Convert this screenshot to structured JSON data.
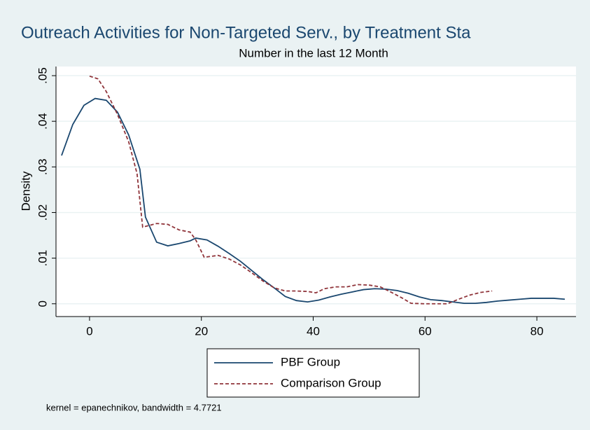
{
  "chart_data": {
    "type": "line",
    "title": "Outreach Activities for Non-Targeted Serv., by Treatment Sta",
    "subtitle": "Number in the last 12 Month",
    "y_label": "Density",
    "note": "kernel = epanechnikov, bandwidth = 4.7721",
    "xlim": [
      -6,
      87
    ],
    "ylim": [
      -0.0028,
      0.052
    ],
    "xticks": [
      0,
      20,
      40,
      60,
      80
    ],
    "yticks": [
      0,
      {
        "value": 0.01,
        "label": ".01"
      },
      {
        "value": 0.02,
        "label": ".02"
      },
      {
        "value": 0.03,
        "label": ".03"
      },
      {
        "value": 0.04,
        "label": ".04"
      },
      {
        "value": 0.05,
        "label": ".05"
      }
    ],
    "grid": true,
    "series": [
      {
        "name": "PBF Group",
        "color": "#1a476f",
        "style": "solid",
        "x": [
          -5,
          -3,
          -1,
          1,
          3,
          5,
          7,
          9,
          10,
          12,
          14,
          16,
          18,
          19,
          21,
          23,
          25,
          27,
          29,
          31,
          33,
          35,
          37,
          39,
          41,
          43,
          45,
          47,
          49,
          51,
          53,
          55,
          57,
          59,
          61,
          63,
          65,
          67,
          69,
          71,
          73,
          75,
          77,
          79,
          81,
          83,
          85
        ],
        "values": [
          0.0325,
          0.0393,
          0.0435,
          0.045,
          0.0446,
          0.042,
          0.037,
          0.0295,
          0.019,
          0.0135,
          0.0127,
          0.0132,
          0.0138,
          0.0144,
          0.014,
          0.0126,
          0.011,
          0.0093,
          0.0073,
          0.0053,
          0.0035,
          0.0016,
          0.0007,
          0.0004,
          0.0008,
          0.0015,
          0.0021,
          0.0026,
          0.0031,
          0.0033,
          0.0032,
          0.0029,
          0.0023,
          0.0015,
          0.0009,
          0.0007,
          0.0004,
          0.0001,
          0.0001,
          0.0003,
          0.0006,
          0.0008,
          0.001,
          0.0012,
          0.0012,
          0.0012,
          0.001
        ]
      },
      {
        "name": "Comparison Group",
        "color": "#90353b",
        "style": "dashed",
        "x": [
          0,
          1.5,
          3,
          5,
          7,
          8.5,
          9.5,
          12,
          14,
          16,
          18,
          19,
          20.5,
          23,
          25,
          27,
          29,
          31,
          33,
          35,
          37,
          39,
          40.5,
          42,
          44,
          46,
          48,
          50,
          52,
          54,
          56,
          57.5,
          60,
          64,
          66,
          68,
          70,
          72
        ],
        "values": [
          0.0499,
          0.0493,
          0.0465,
          0.0415,
          0.0355,
          0.0285,
          0.0168,
          0.0176,
          0.0174,
          0.0162,
          0.0157,
          0.014,
          0.0102,
          0.0106,
          0.0098,
          0.0085,
          0.0068,
          0.005,
          0.0035,
          0.0028,
          0.0028,
          0.0027,
          0.0024,
          0.0033,
          0.0037,
          0.0037,
          0.0042,
          0.0041,
          0.0037,
          0.0025,
          0.0012,
          0.0001,
          0,
          0,
          0.001,
          0.0019,
          0.0025,
          0.0028
        ]
      }
    ]
  }
}
